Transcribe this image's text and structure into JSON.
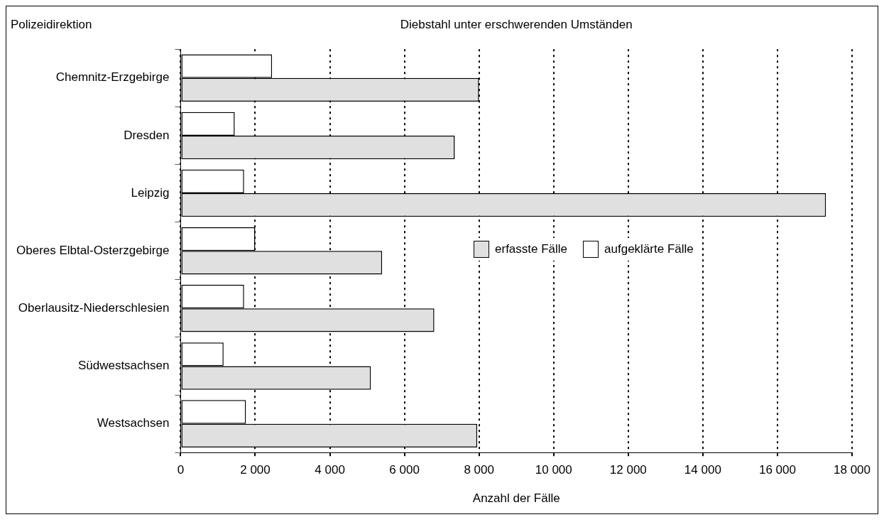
{
  "chart_data": {
    "type": "bar",
    "orientation": "horizontal",
    "title": "Diebstahl unter erschwerenden Umständen",
    "ylabel": "Polizeidirektion",
    "xlabel": "Anzahl der Fälle",
    "categories": [
      "Chemnitz-Erzgebirge",
      "Dresden",
      "Leipzig",
      "Oberes Elbtal-Osterzgebirge",
      "Oberlausitz-Niederschlesien",
      "Südwestsachsen",
      "Westsachsen"
    ],
    "series": [
      {
        "name": "erfasste Fälle",
        "color": "#e0e0e0",
        "values": [
          8000,
          7350,
          17300,
          5400,
          6800,
          5100,
          7950
        ]
      },
      {
        "name": "aufgeklärte Fälle",
        "color": "#ffffff",
        "values": [
          2450,
          1450,
          1700,
          2000,
          1700,
          1150,
          1750
        ]
      }
    ],
    "xlim": [
      0,
      18000
    ],
    "xticks": [
      {
        "value": 0,
        "label": "0"
      },
      {
        "value": 2000,
        "label": "2 000"
      },
      {
        "value": 4000,
        "label": "4 000"
      },
      {
        "value": 6000,
        "label": "6 000"
      },
      {
        "value": 8000,
        "label": "8 000"
      },
      {
        "value": 10000,
        "label": "10 000"
      },
      {
        "value": 12000,
        "label": "12 000"
      },
      {
        "value": 14000,
        "label": "14 000"
      },
      {
        "value": 16000,
        "label": "16 000"
      },
      {
        "value": 18000,
        "label": "18 000"
      }
    ],
    "grid": "x",
    "legend": "right"
  }
}
